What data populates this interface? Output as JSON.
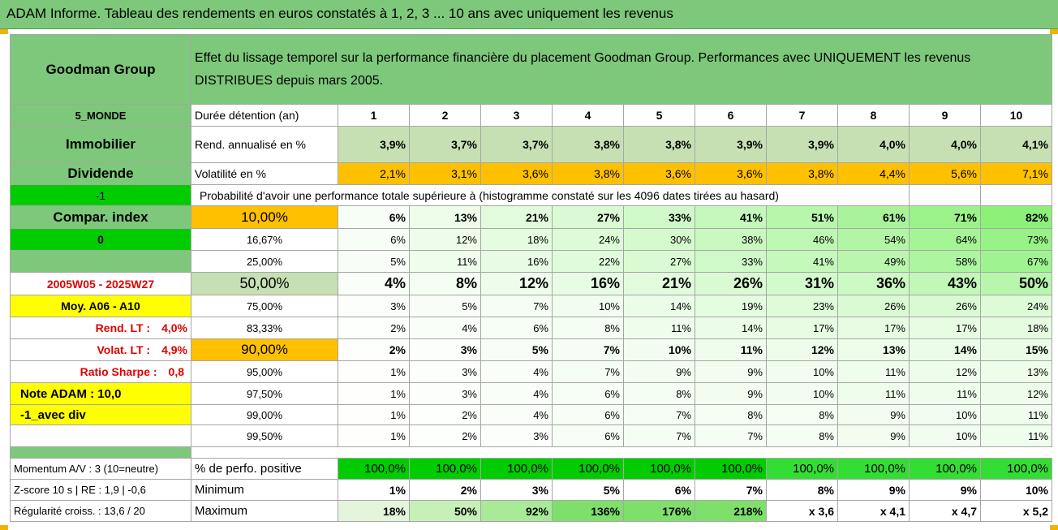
{
  "title": "ADAM Informe. Tableau des rendements en euros constatés à 1, 2, 3 ... 10 ans avec uniquement les revenus",
  "left": {
    "name": "Goodman Group",
    "region": "5_MONDE",
    "sector": "Immobilier",
    "type": "Dividende",
    "flag1": "-1",
    "compar": "Compar. index",
    "flag2": "0",
    "period": "2005W05 - 2025W27",
    "moy": "Moy. A06 - A10",
    "rend_lt_label": "Rend. LT :",
    "rend_lt_val": "4,0%",
    "volat_lt_label": "Volat. LT :",
    "volat_lt_val": "4,9%",
    "sharpe_label": "Ratio Sharpe :",
    "sharpe_val": "0,8",
    "note": "Note ADAM : 10,0",
    "avec": "-1_avec div",
    "momentum": "Momentum A/V : 3 (10=neutre)",
    "zscore": "Z-score 10 s | RE : 1,9 | -0,6",
    "regularite": "Régularité croiss. : 13,6 / 20"
  },
  "header": {
    "description": "Effet du lissage temporel sur la performance financière du placement Goodman Group. Performances avec UNIQUEMENT les revenus DISTRIBUES depuis mars 2005.",
    "duree_label": "Durée détention (an)",
    "years": [
      "1",
      "2",
      "3",
      "4",
      "5",
      "6",
      "7",
      "8",
      "9",
      "10"
    ]
  },
  "rend": {
    "label": "Rend. annualisé en %",
    "values": [
      "3,9%",
      "3,7%",
      "3,7%",
      "3,8%",
      "3,8%",
      "3,9%",
      "3,9%",
      "4,0%",
      "4,0%",
      "4,1%"
    ]
  },
  "vol": {
    "label": "Volatilité en %",
    "values": [
      "2,1%",
      "3,1%",
      "3,6%",
      "3,8%",
      "3,6%",
      "3,6%",
      "3,8%",
      "4,4%",
      "5,6%",
      "7,1%"
    ]
  },
  "proba_label": "Probabilité d'avoir une performance totale supérieure à (histogramme constaté sur les 4096 dates tirées au hasard)",
  "proba_rows": [
    {
      "threshold": "10,00%",
      "values": [
        "6%",
        "13%",
        "21%",
        "27%",
        "33%",
        "41%",
        "51%",
        "61%",
        "71%",
        "82%"
      ]
    },
    {
      "threshold": "16,67%",
      "values": [
        "6%",
        "12%",
        "18%",
        "24%",
        "30%",
        "38%",
        "46%",
        "54%",
        "64%",
        "73%"
      ]
    },
    {
      "threshold": "25,00%",
      "values": [
        "5%",
        "11%",
        "16%",
        "22%",
        "27%",
        "33%",
        "41%",
        "49%",
        "58%",
        "67%"
      ]
    },
    {
      "threshold": "50,00%",
      "values": [
        "4%",
        "8%",
        "12%",
        "16%",
        "21%",
        "26%",
        "31%",
        "36%",
        "43%",
        "50%"
      ]
    },
    {
      "threshold": "75,00%",
      "values": [
        "3%",
        "5%",
        "7%",
        "10%",
        "14%",
        "19%",
        "23%",
        "26%",
        "26%",
        "24%"
      ]
    },
    {
      "threshold": "83,33%",
      "values": [
        "2%",
        "4%",
        "6%",
        "8%",
        "11%",
        "14%",
        "17%",
        "17%",
        "17%",
        "18%"
      ]
    },
    {
      "threshold": "90,00%",
      "values": [
        "2%",
        "3%",
        "5%",
        "7%",
        "10%",
        "11%",
        "12%",
        "13%",
        "14%",
        "15%"
      ]
    },
    {
      "threshold": "95,00%",
      "values": [
        "1%",
        "3%",
        "4%",
        "7%",
        "9%",
        "9%",
        "10%",
        "11%",
        "12%",
        "13%"
      ]
    },
    {
      "threshold": "97,50%",
      "values": [
        "1%",
        "3%",
        "4%",
        "6%",
        "8%",
        "9%",
        "10%",
        "11%",
        "11%",
        "12%"
      ]
    },
    {
      "threshold": "99,00%",
      "values": [
        "1%",
        "2%",
        "4%",
        "6%",
        "7%",
        "8%",
        "8%",
        "9%",
        "10%",
        "11%"
      ]
    },
    {
      "threshold": "99,50%",
      "values": [
        "1%",
        "2%",
        "3%",
        "6%",
        "7%",
        "7%",
        "8%",
        "9%",
        "10%",
        "11%"
      ]
    }
  ],
  "positive": {
    "label": "% de perfo. positive",
    "values": [
      "100,0%",
      "100,0%",
      "100,0%",
      "100,0%",
      "100,0%",
      "100,0%",
      "100,0%",
      "100,0%",
      "100,0%",
      "100,0%"
    ]
  },
  "minimum": {
    "label": "Minimum",
    "values": [
      "1%",
      "2%",
      "3%",
      "5%",
      "6%",
      "7%",
      "8%",
      "9%",
      "9%",
      "10%"
    ]
  },
  "maximum": {
    "label": "Maximum",
    "values": [
      "18%",
      "50%",
      "92%",
      "136%",
      "176%",
      "218%",
      "x 3,6",
      "x 4,1",
      "x 4,7",
      "x 5,2"
    ]
  },
  "colors": {
    "green": "#7dc87a",
    "light_green": "#c6e0b4",
    "bright_green": "#00cc00",
    "yellow": "#ffff00",
    "orange": "#ffc000",
    "red": "#e00000"
  }
}
